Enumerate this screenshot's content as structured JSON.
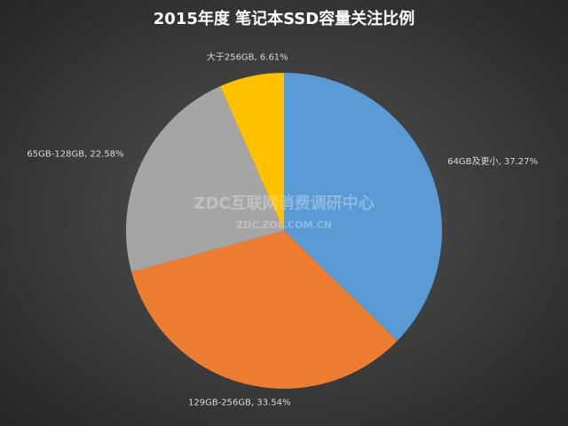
{
  "chart_data": {
    "type": "pie",
    "title": "2015年度 笔记本SSD容量关注比例",
    "categories": [
      "64GB及更小",
      "129GB-256GB",
      "65GB-128GB",
      "大于256GB"
    ],
    "values": [
      37.27,
      33.54,
      22.58,
      6.61
    ],
    "value_labels": [
      "64GB及更小, 37.27%",
      "129GB-256GB, 33.54%",
      "65GB-128GB, 22.58%",
      "大于256GB, 6.61%"
    ],
    "colors": [
      "#5b9bd5",
      "#ed7d31",
      "#a5a5a5",
      "#ffc000"
    ],
    "watermark": [
      "ZDC互联网消费调研中心",
      "ZDC.ZOL.COM.CN"
    ]
  }
}
